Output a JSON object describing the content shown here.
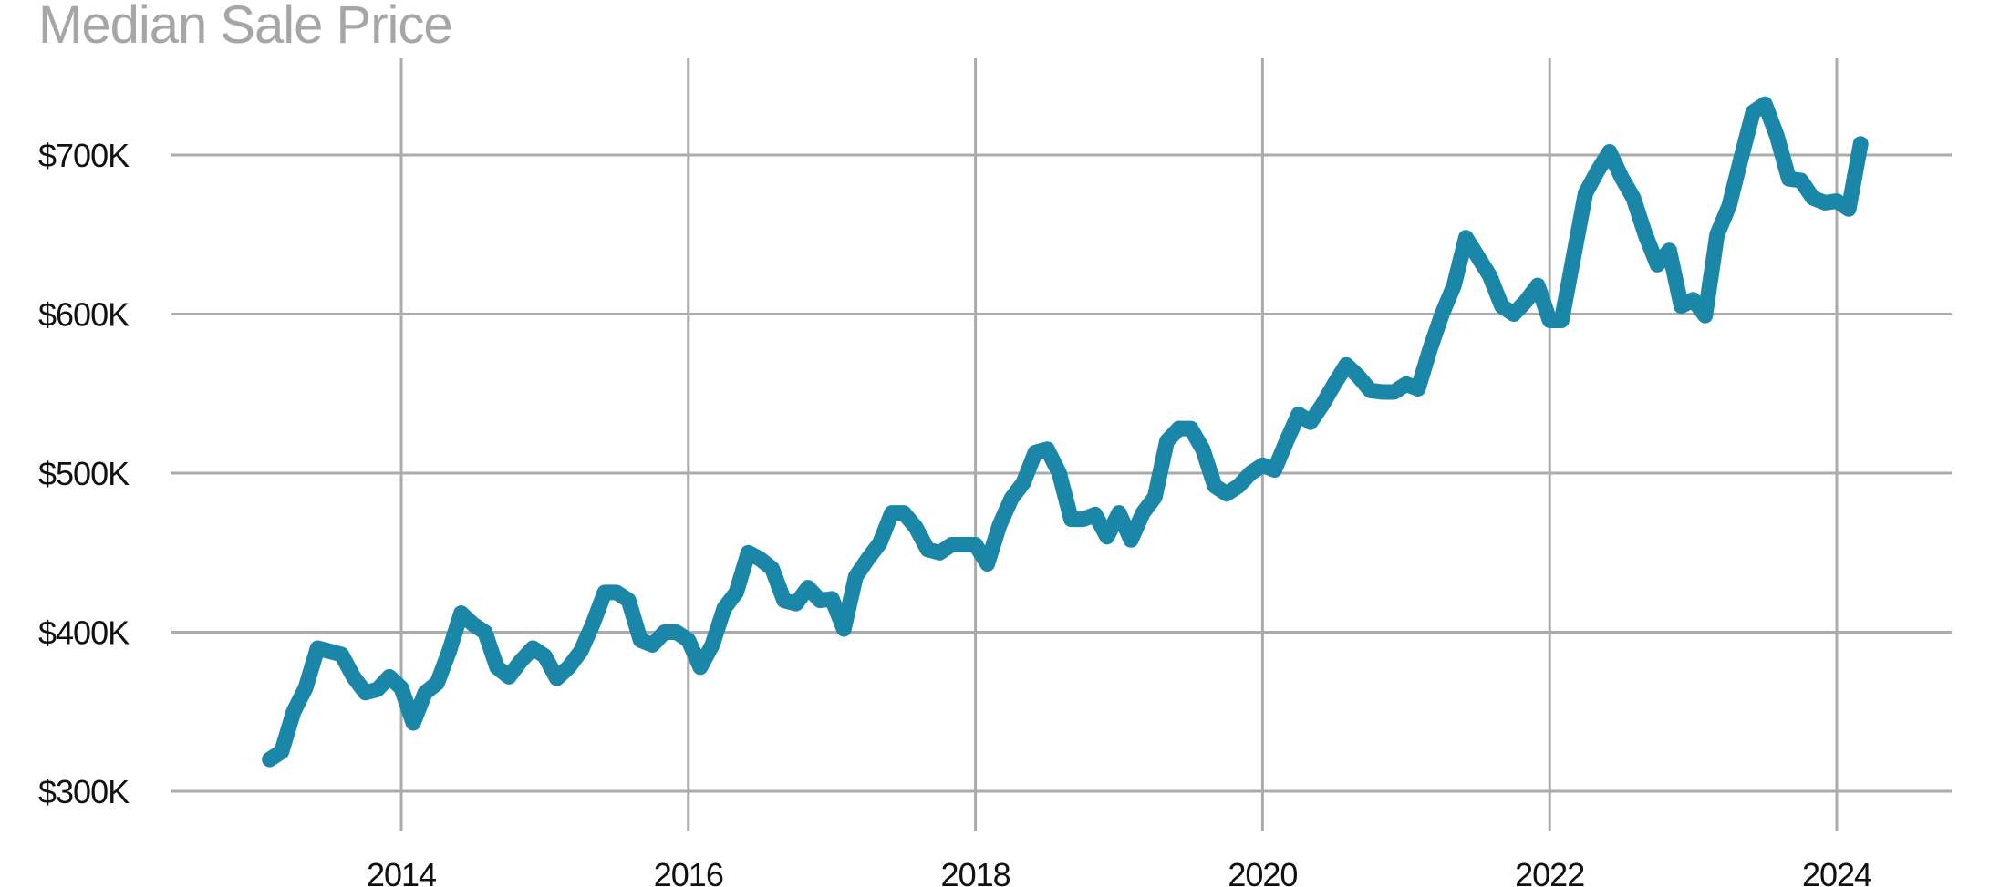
{
  "chart_data": {
    "type": "line",
    "title": "Median Sale Price",
    "xlabel": "",
    "ylabel": "",
    "ylim": [
      300000,
      700000
    ],
    "xlim": [
      "2013-01",
      "2024-03"
    ],
    "y_ticks": [
      {
        "value": 300000,
        "label": "$300K"
      },
      {
        "value": 400000,
        "label": "$400K"
      },
      {
        "value": 500000,
        "label": "$500K"
      },
      {
        "value": 600000,
        "label": "$600K"
      },
      {
        "value": 700000,
        "label": "$700K"
      }
    ],
    "x_ticks": [
      {
        "value": 2014,
        "label": "2014"
      },
      {
        "value": 2016,
        "label": "2016"
      },
      {
        "value": 2018,
        "label": "2018"
      },
      {
        "value": 2020,
        "label": "2020"
      },
      {
        "value": 2022,
        "label": "2022"
      },
      {
        "value": 2024,
        "label": "2024"
      }
    ],
    "grid": true,
    "legend": "none",
    "colors": {
      "line": "#1a86a8",
      "grid": "#ababab",
      "title": "#a6a6a6"
    },
    "x": [
      "2013-02",
      "2013-03",
      "2013-04",
      "2013-05",
      "2013-06",
      "2013-07",
      "2013-08",
      "2013-09",
      "2013-10",
      "2013-11",
      "2013-12",
      "2014-01",
      "2014-02",
      "2014-03",
      "2014-04",
      "2014-05",
      "2014-06",
      "2014-07",
      "2014-08",
      "2014-09",
      "2014-10",
      "2014-11",
      "2014-12",
      "2015-01",
      "2015-02",
      "2015-03",
      "2015-04",
      "2015-05",
      "2015-06",
      "2015-07",
      "2015-08",
      "2015-09",
      "2015-10",
      "2015-11",
      "2015-12",
      "2016-01",
      "2016-02",
      "2016-03",
      "2016-04",
      "2016-05",
      "2016-06",
      "2016-07",
      "2016-08",
      "2016-09",
      "2016-10",
      "2016-11",
      "2016-12",
      "2017-01",
      "2017-02",
      "2017-03",
      "2017-04",
      "2017-05",
      "2017-06",
      "2017-07",
      "2017-08",
      "2017-09",
      "2017-10",
      "2017-11",
      "2017-12",
      "2018-01",
      "2018-02",
      "2018-03",
      "2018-04",
      "2018-05",
      "2018-06",
      "2018-07",
      "2018-08",
      "2018-09",
      "2018-10",
      "2018-11",
      "2018-12",
      "2019-01",
      "2019-02",
      "2019-03",
      "2019-04",
      "2019-05",
      "2019-06",
      "2019-07",
      "2019-08",
      "2019-09",
      "2019-10",
      "2019-11",
      "2019-12",
      "2020-01",
      "2020-02",
      "2020-03",
      "2020-04",
      "2020-05",
      "2020-06",
      "2020-07",
      "2020-08",
      "2020-09",
      "2020-10",
      "2020-11",
      "2020-12",
      "2021-01",
      "2021-02",
      "2021-03",
      "2021-04",
      "2021-05",
      "2021-06",
      "2021-07",
      "2021-08",
      "2021-09",
      "2021-10",
      "2021-11",
      "2021-12",
      "2022-01",
      "2022-02",
      "2022-03",
      "2022-04",
      "2022-05",
      "2022-06",
      "2022-07",
      "2022-08",
      "2022-09",
      "2022-10",
      "2022-11",
      "2022-12",
      "2023-01",
      "2023-02",
      "2023-03",
      "2023-04",
      "2023-05",
      "2023-06",
      "2023-07",
      "2023-08",
      "2023-09",
      "2023-10",
      "2023-11",
      "2023-12",
      "2024-01",
      "2024-02",
      "2024-03"
    ],
    "series": [
      {
        "values": [
          320000,
          325000,
          350000,
          365000,
          390000,
          388000,
          386000,
          372000,
          362000,
          364000,
          372000,
          365000,
          343000,
          362000,
          368000,
          388000,
          412000,
          405000,
          400000,
          378000,
          372000,
          382000,
          390000,
          385000,
          371000,
          378000,
          388000,
          405000,
          425000,
          425000,
          420000,
          395000,
          392000,
          400000,
          400000,
          395000,
          378000,
          392000,
          415000,
          425000,
          450000,
          446000,
          440000,
          420000,
          418000,
          428000,
          420000,
          421000,
          402000,
          435000,
          446000,
          456000,
          475000,
          475000,
          466000,
          452000,
          450000,
          455000,
          455000,
          455000,
          443000,
          467000,
          484000,
          494000,
          513000,
          515000,
          500000,
          471000,
          471000,
          474000,
          460000,
          475000,
          458000,
          475000,
          485000,
          520000,
          528000,
          528000,
          515000,
          492000,
          487000,
          492000,
          500000,
          505000,
          502000,
          520000,
          537000,
          532000,
          543000,
          556000,
          568000,
          561000,
          552000,
          551000,
          551000,
          556000,
          553000,
          578000,
          600000,
          618000,
          648000,
          636000,
          624000,
          605000,
          600000,
          608000,
          618000,
          596000,
          596000,
          636000,
          676000,
          690000,
          702000,
          686000,
          673000,
          650000,
          631000,
          640000,
          605000,
          609000,
          599000,
          650000,
          668000,
          698000,
          727000,
          732000,
          712000,
          685000,
          684000,
          673000,
          670000,
          671000,
          666000,
          707000
        ]
      }
    ]
  }
}
